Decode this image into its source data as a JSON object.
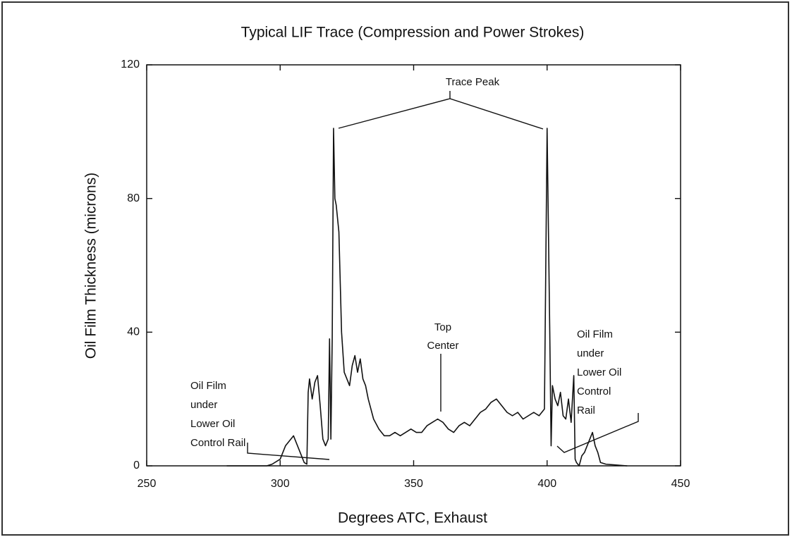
{
  "chart_data": {
    "type": "line",
    "title": "Typical LIF Trace (Compression and Power Strokes)",
    "xlabel": "Degrees ATC, Exhaust",
    "ylabel": "Oil Film Thickness (microns)",
    "color": "#111111",
    "xlim": [
      250,
      450
    ],
    "xticks": [
      250,
      300,
      350,
      400,
      450
    ],
    "ylim": [
      0,
      120
    ],
    "yticks": [
      0,
      40,
      80,
      120
    ],
    "x": [
      280,
      295,
      297,
      300,
      302,
      304,
      305,
      306,
      308,
      309,
      310,
      310.5,
      311,
      312,
      313,
      314,
      315,
      316,
      317,
      318,
      318.5,
      319,
      319.5,
      320,
      320.5,
      321,
      322,
      323,
      324,
      325,
      326,
      327,
      328,
      329,
      330,
      331,
      332,
      333,
      335,
      337,
      339,
      341,
      343,
      345,
      347,
      349,
      351,
      353,
      355,
      357,
      359,
      361,
      363,
      365,
      367,
      369,
      371,
      373,
      375,
      377,
      379,
      381,
      383,
      385,
      387,
      389,
      391,
      393,
      395,
      397,
      399,
      400,
      401,
      401.5,
      402,
      403,
      404,
      405,
      406,
      407,
      408,
      409,
      410,
      410.5,
      411,
      412,
      413,
      414,
      416,
      417,
      418,
      419,
      420,
      422,
      425,
      430
    ],
    "values": [
      0,
      0,
      0.5,
      2,
      6,
      8,
      9,
      7,
      3,
      1,
      0.5,
      22,
      26,
      20,
      25,
      27,
      18,
      8,
      6,
      8,
      38,
      8,
      38,
      101,
      80,
      78,
      70,
      40,
      28,
      26,
      24,
      30,
      33,
      28,
      32,
      26,
      24,
      20,
      14,
      11,
      9,
      9,
      10,
      9,
      10,
      11,
      10,
      10,
      12,
      13,
      14,
      13,
      11,
      10,
      12,
      13,
      12,
      14,
      16,
      17,
      19,
      20,
      18,
      16,
      15,
      16,
      14,
      15,
      16,
      15,
      17,
      101,
      40,
      6,
      24,
      20,
      18,
      22,
      15,
      14,
      20,
      13,
      27,
      2,
      1,
      0,
      3,
      4,
      8,
      10,
      6,
      4,
      1,
      0.5,
      0.3,
      0
    ],
    "annotations": {
      "trace_peak": "Trace Peak",
      "top_center": [
        "Top",
        "Center"
      ],
      "left_rail": [
        "Oil Film",
        "under",
        "Lower Oil",
        "Control Rail"
      ],
      "right_rail": [
        "Oil Film",
        "under",
        "Lower Oil",
        "Control",
        "Rail"
      ]
    }
  }
}
